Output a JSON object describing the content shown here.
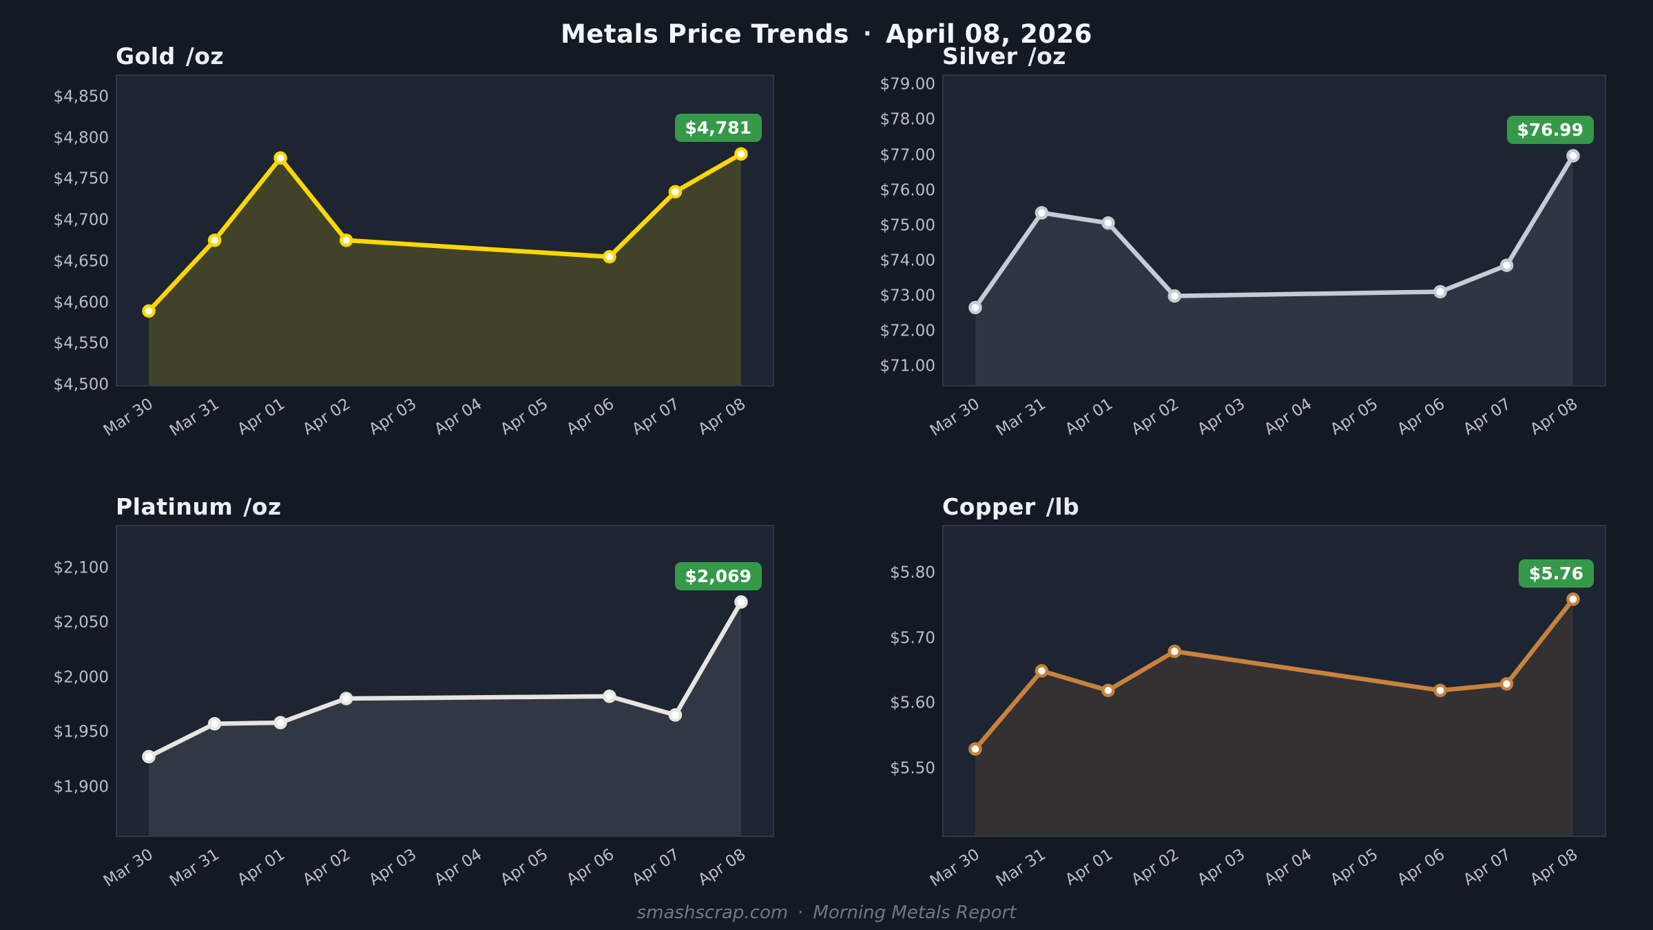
{
  "header": {
    "title": "Metals Price Trends",
    "separator": "·",
    "date": "April 08, 2026"
  },
  "footer": {
    "site": "smashscrap.com",
    "separator": "·",
    "label": "Morning Metals Report"
  },
  "chart_data": [
    {
      "type": "line",
      "title": "Gold",
      "unit": "/oz",
      "x_labels": [
        "Mar 30",
        "Mar 31",
        "Apr 01",
        "Apr 02",
        "Apr 03",
        "Apr 04",
        "Apr 05",
        "Apr 06",
        "Apr 07",
        "Apr 08"
      ],
      "values": [
        4590,
        4676,
        4776,
        4676,
        null,
        null,
        null,
        4656,
        4735,
        4781
      ],
      "yticks": [
        "$4,500",
        "$4,550",
        "$4,600",
        "$4,650",
        "$4,700",
        "$4,750",
        "$4,800",
        "$4,850"
      ],
      "ylim": [
        4500,
        4876
      ],
      "grid": false,
      "legend": false,
      "line_color": "#ffd700",
      "fill_alpha": 0.16,
      "last_price_label": "$4,781",
      "badge_color": "#36994a"
    },
    {
      "type": "line",
      "title": "Silver",
      "unit": "/oz",
      "x_labels": [
        "Mar 30",
        "Mar 31",
        "Apr 01",
        "Apr 02",
        "Apr 03",
        "Apr 04",
        "Apr 05",
        "Apr 06",
        "Apr 07",
        "Apr 08"
      ],
      "values": [
        72.68,
        75.37,
        75.08,
        73.01,
        null,
        null,
        null,
        73.13,
        73.88,
        76.99
      ],
      "yticks": [
        "$71.00",
        "$72.00",
        "$73.00",
        "$74.00",
        "$75.00",
        "$76.00",
        "$77.00",
        "$78.00",
        "$79.00"
      ],
      "ylim": [
        70.48,
        79.26
      ],
      "grid": false,
      "legend": false,
      "line_color": "#c6ccd4",
      "fill_alpha": 0.1,
      "last_price_label": "$76.99",
      "badge_color": "#36994a"
    },
    {
      "type": "line",
      "title": "Platinum",
      "unit": "/oz",
      "x_labels": [
        "Mar 30",
        "Mar 31",
        "Apr 01",
        "Apr 02",
        "Apr 03",
        "Apr 04",
        "Apr 05",
        "Apr 06",
        "Apr 07",
        "Apr 08"
      ],
      "values": [
        1928,
        1958,
        1959,
        1981,
        null,
        null,
        null,
        1983,
        1966,
        2069
      ],
      "yticks": [
        "$1,900",
        "$1,950",
        "$2,000",
        "$2,050",
        "$2,100"
      ],
      "ylim": [
        1856,
        2138
      ],
      "grid": false,
      "legend": false,
      "line_color": "#e8e5e1",
      "fill_alpha": 0.1,
      "last_price_label": "$2,069",
      "badge_color": "#36994a"
    },
    {
      "type": "line",
      "title": "Copper",
      "unit": "/lb",
      "x_labels": [
        "Mar 30",
        "Mar 31",
        "Apr 01",
        "Apr 02",
        "Apr 03",
        "Apr 04",
        "Apr 05",
        "Apr 06",
        "Apr 07",
        "Apr 08"
      ],
      "values": [
        5.53,
        5.65,
        5.62,
        5.68,
        null,
        null,
        null,
        5.62,
        5.63,
        5.76
      ],
      "yticks": [
        "$5.50",
        "$5.60",
        "$5.70",
        "$5.80"
      ],
      "ylim": [
        5.397,
        5.872
      ],
      "grid": false,
      "legend": false,
      "line_color": "#c8823f",
      "fill_alpha": 0.14,
      "last_price_label": "$5.76",
      "badge_color": "#36994a"
    }
  ]
}
